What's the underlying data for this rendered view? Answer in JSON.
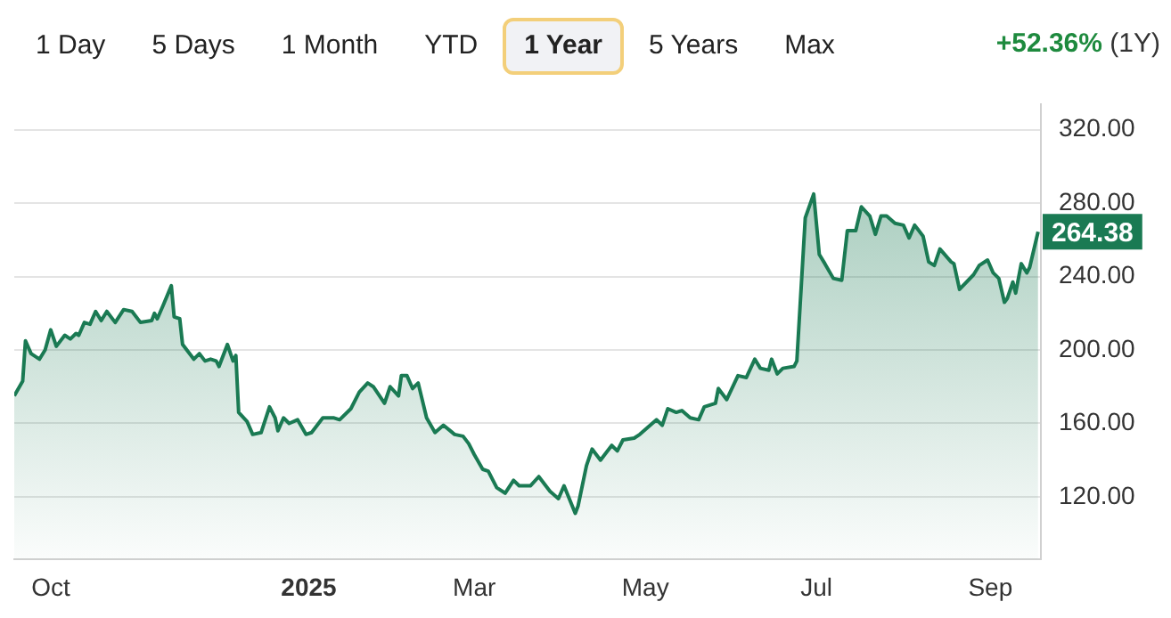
{
  "chart_data": {
    "type": "area",
    "title": "+52.36%",
    "subtitle": "(1Y)",
    "annotations": [
      "1 Day",
      "5 Days",
      "1 Month",
      "YTD",
      "1 Year",
      "5 Years",
      "Max"
    ],
    "value_labels": [
      null,
      null,
      null,
      null,
      null,
      null,
      null,
      null,
      null,
      null,
      null,
      null,
      null,
      null,
      null,
      null,
      null,
      null,
      null,
      null,
      null,
      null,
      null,
      null,
      null,
      null,
      null,
      null,
      null,
      null,
      null,
      null,
      null,
      null,
      null,
      null,
      null,
      null,
      null,
      null,
      null,
      null,
      null,
      null,
      null,
      null,
      null,
      null,
      null,
      null,
      null,
      null,
      null,
      null,
      null,
      null,
      null,
      null,
      null,
      null,
      null,
      null,
      null,
      null,
      null,
      null,
      null,
      null,
      null,
      null,
      null,
      null,
      null,
      null,
      null,
      null,
      null,
      null,
      null,
      null,
      null,
      null,
      null,
      null,
      null,
      null,
      null,
      null,
      null,
      null,
      null,
      null,
      null,
      null,
      null,
      null,
      null,
      null,
      null,
      null,
      null,
      null,
      null,
      null,
      null,
      null,
      null,
      null,
      null,
      null,
      null,
      null,
      null,
      null,
      null,
      null,
      null,
      null,
      null,
      null,
      null,
      null,
      null,
      null,
      null,
      null,
      null,
      null,
      null,
      null,
      null,
      null,
      null,
      null,
      null,
      null,
      null,
      null,
      null,
      null,
      null,
      null,
      null,
      null,
      null,
      null,
      null,
      null,
      null,
      "264.38"
    ],
    "x": [
      "2024-09-18",
      "2024-09-21",
      "2024-09-22",
      "2024-09-24",
      "2024-09-27",
      "2024-09-29",
      "2024-10-01",
      "2024-10-03",
      "2024-10-06",
      "2024-10-08",
      "2024-10-10",
      "2024-10-11",
      "2024-10-13",
      "2024-10-15",
      "2024-10-17",
      "2024-10-19",
      "2024-10-21",
      "2024-10-24",
      "2024-10-27",
      "2024-10-30",
      "2024-11-02",
      "2024-11-06",
      "2024-11-07",
      "2024-11-08",
      "2024-11-10",
      "2024-11-13",
      "2024-11-14",
      "2024-11-16",
      "2024-11-17",
      "2024-11-21",
      "2024-11-23",
      "2024-11-25",
      "2024-11-27",
      "2024-11-29",
      "2024-11-30",
      "2024-12-03",
      "2024-12-05",
      "2024-12-06",
      "2024-12-07",
      "2024-12-10",
      "2024-12-12",
      "2024-12-15",
      "2024-12-18",
      "2024-12-20",
      "2024-12-21",
      "2024-12-23",
      "2024-12-25",
      "2024-12-28",
      "2024-12-31",
      "2025-01-02",
      "2025-01-06",
      "2025-01-10",
      "2025-01-12",
      "2025-01-16",
      "2025-01-19",
      "2025-01-22",
      "2025-01-24",
      "2025-01-28",
      "2025-01-30",
      "2025-02-02",
      "2025-02-03",
      "2025-02-05",
      "2025-02-07",
      "2025-02-09",
      "2025-02-12",
      "2025-02-15",
      "2025-02-18",
      "2025-02-22",
      "2025-02-25",
      "2025-02-27",
      "2025-03-01",
      "2025-03-04",
      "2025-03-06",
      "2025-03-09",
      "2025-03-12",
      "2025-03-15",
      "2025-03-17",
      "2025-03-21",
      "2025-03-24",
      "2025-03-28",
      "2025-03-31",
      "2025-04-02",
      "2025-04-06",
      "2025-04-07",
      "2025-04-10",
      "2025-04-12",
      "2025-04-15",
      "2025-04-19",
      "2025-04-21",
      "2025-04-23",
      "2025-04-27",
      "2025-04-29",
      "2025-05-05",
      "2025-05-07",
      "2025-05-09",
      "2025-05-12",
      "2025-05-14",
      "2025-05-17",
      "2025-05-20",
      "2025-05-22",
      "2025-05-26",
      "2025-05-27",
      "2025-05-30",
      "2025-06-03",
      "2025-06-06",
      "2025-06-09",
      "2025-06-11",
      "2025-06-14",
      "2025-06-15",
      "2025-06-17",
      "2025-06-19",
      "2025-06-23",
      "2025-06-24",
      "2025-06-27",
      "2025-06-30",
      "2025-07-02",
      "2025-07-04",
      "2025-07-07",
      "2025-07-10",
      "2025-07-12",
      "2025-07-15",
      "2025-07-17",
      "2025-07-20",
      "2025-07-22",
      "2025-07-24",
      "2025-07-26",
      "2025-07-29",
      "2025-08-01",
      "2025-08-03",
      "2025-08-05",
      "2025-08-08",
      "2025-08-10",
      "2025-08-12",
      "2025-08-14",
      "2025-08-18",
      "2025-08-19",
      "2025-08-21",
      "2025-08-26",
      "2025-08-28",
      "2025-08-31",
      "2025-09-02",
      "2025-09-04",
      "2025-09-06",
      "2025-09-07",
      "2025-09-09",
      "2025-09-10",
      "2025-09-12",
      "2025-09-14",
      "2025-09-15",
      "2025-09-18"
    ],
    "values": [
      175,
      183,
      205,
      198,
      195,
      200,
      211,
      202,
      208,
      206,
      209,
      208,
      215,
      214,
      221,
      216,
      221,
      215,
      222,
      221,
      215,
      216,
      220,
      217,
      224,
      235,
      218,
      217,
      203,
      195,
      198,
      194,
      195,
      194,
      191,
      203,
      194,
      197,
      166,
      161,
      154,
      155,
      169,
      163,
      156,
      163,
      160,
      162,
      154,
      155,
      163,
      163,
      162,
      168,
      177,
      182,
      180,
      171,
      180,
      175,
      186,
      186,
      179,
      182,
      163,
      155,
      159,
      154,
      153,
      149,
      143,
      135,
      134,
      125,
      122,
      129,
      126,
      126,
      131,
      123,
      119,
      126,
      111,
      115,
      137,
      146,
      140,
      148,
      145,
      151,
      152,
      154,
      162,
      159,
      168,
      166,
      167,
      163,
      162,
      169,
      171,
      179,
      173,
      186,
      185,
      195,
      190,
      189,
      195,
      187,
      190,
      191,
      194,
      272,
      285,
      252,
      247,
      239,
      238,
      265,
      265,
      278,
      273,
      263,
      273,
      273,
      269,
      268,
      261,
      268,
      262,
      248,
      246,
      255,
      248,
      247,
      233,
      241,
      246,
      249,
      242,
      239,
      226,
      228,
      237,
      231,
      247,
      242,
      245,
      264.38
    ],
    "color": "#1a7a53",
    "xlim": [
      "2024-09-18",
      "2025-09-19"
    ],
    "xticks": [
      {
        "value": "2024-10-01",
        "label": "Oct"
      },
      {
        "value": "2025-01-01",
        "label": "2025"
      },
      {
        "value": "2025-03-01",
        "label": "Mar"
      },
      {
        "value": "2025-05-01",
        "label": "May"
      },
      {
        "value": "2025-07-01",
        "label": "Jul"
      },
      {
        "value": "2025-09-01",
        "label": "Sep"
      }
    ],
    "ylim": [
      86,
      334
    ],
    "yticks": [
      {
        "value": 120,
        "label": "120.00"
      },
      {
        "value": 160,
        "label": "160.00"
      },
      {
        "value": 200,
        "label": "200.00"
      },
      {
        "value": 240,
        "label": "240.00"
      },
      {
        "value": 280,
        "label": "280.00"
      },
      {
        "value": 320,
        "label": "320.00"
      }
    ],
    "grid": "y",
    "legend": false,
    "marker": "none",
    "line_style": "solid"
  }
}
